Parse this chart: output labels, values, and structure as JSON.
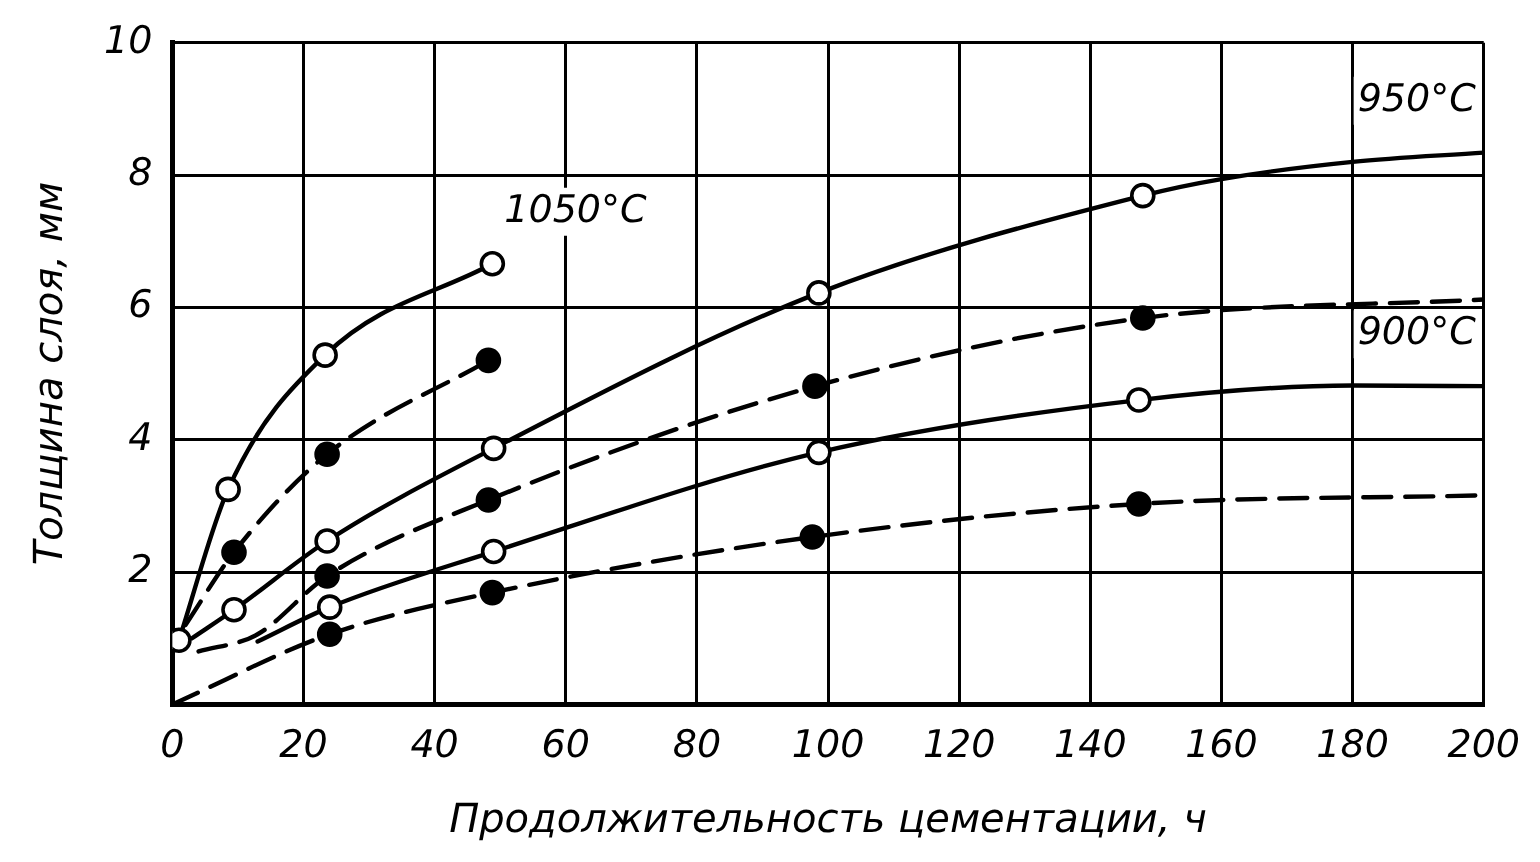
{
  "chart_data": {
    "type": "line",
    "xlabel": "Продолжительность цементации, ч",
    "ylabel": "Толщина слоя, мм",
    "xlim": [
      0,
      200
    ],
    "xticks": [
      0,
      20,
      40,
      60,
      80,
      100,
      120,
      140,
      160,
      180,
      200
    ],
    "ylim": [
      0,
      10
    ],
    "yticks": [
      {
        "value": 0,
        "label": null
      },
      2,
      4,
      6,
      8,
      10
    ],
    "grid": true,
    "legend": false,
    "series": [
      {
        "name": "1050°C",
        "line_style": "solid",
        "marker": "none",
        "color": "#000000",
        "x": [
          1,
          8.5,
          23.3,
          48.8
        ],
        "values": [
          0.97,
          3.25,
          5.28,
          6.66
        ]
      },
      {
        "line_style": "dashed",
        "marker": "none",
        "color": "#000000",
        "x": [
          2,
          9.4,
          23.6,
          48.2
        ],
        "values": [
          1.2,
          2.3,
          3.78,
          5.2
        ]
      },
      {
        "name": "950°C",
        "line_style": "solid",
        "marker": "none",
        "color": "#000000",
        "x": [
          3,
          9.4,
          23.6,
          49,
          98.6,
          148,
          160,
          180,
          200
        ],
        "values": [
          1.0,
          1.43,
          2.47,
          3.87,
          6.22,
          7.69,
          7.94,
          8.2,
          8.34
        ]
      },
      {
        "line_style": "dashed",
        "marker": "none",
        "color": "#000000",
        "x": [
          4,
          13,
          23.6,
          48.2,
          98,
          148,
          200
        ],
        "values": [
          0.8,
          1.06,
          1.94,
          3.09,
          4.81,
          5.84,
          6.12
        ]
      },
      {
        "name": "900°C",
        "line_style": "solid",
        "marker": "none",
        "color": "#000000",
        "x": [
          13,
          24,
          49,
          98.6,
          147.4,
          180,
          200
        ],
        "values": [
          0.95,
          1.47,
          2.31,
          3.81,
          4.6,
          4.82,
          4.81
        ]
      },
      {
        "line_style": "dashed",
        "marker": "none",
        "color": "#000000",
        "x": [
          0,
          24,
          48.8,
          97.6,
          147.4,
          200
        ],
        "values": [
          0,
          1.06,
          1.69,
          2.53,
          3.03,
          3.16
        ]
      },
      {
        "type": "scatter",
        "marker": "circle",
        "color": "#ffffff",
        "x": [
          1,
          8.5,
          23.3,
          48.8,
          9.4,
          23.6,
          49,
          98.6,
          148,
          24,
          49,
          98.6,
          147.4
        ],
        "values": [
          0.97,
          3.25,
          5.28,
          6.66,
          1.43,
          2.47,
          3.87,
          6.22,
          7.69,
          1.47,
          2.31,
          3.81,
          4.6
        ]
      },
      {
        "type": "scatter",
        "marker": "circle",
        "color": "#000000",
        "x": [
          9.4,
          23.6,
          48.2,
          23.6,
          48.2,
          98,
          148,
          24,
          48.8,
          97.6,
          147.4
        ],
        "values": [
          2.3,
          3.78,
          5.2,
          1.94,
          3.09,
          4.81,
          5.84,
          1.06,
          1.69,
          2.53,
          3.03
        ]
      }
    ]
  }
}
